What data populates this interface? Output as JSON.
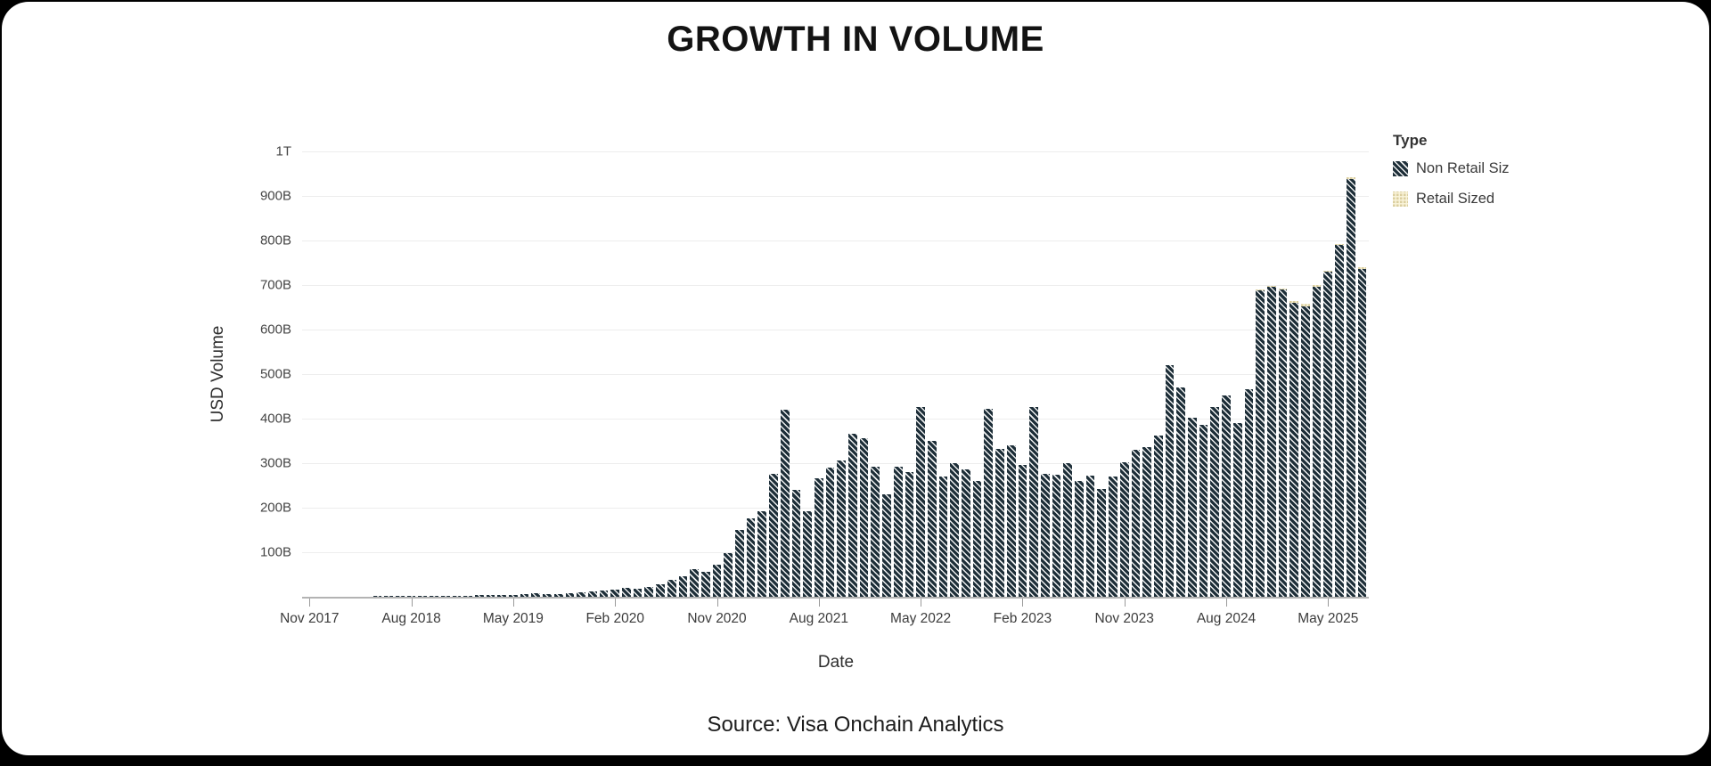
{
  "page": {
    "title": "GROWTH IN VOLUME",
    "source": "Source: Visa Onchain Analytics"
  },
  "legend": {
    "title": "Type",
    "items": [
      {
        "label": "Non Retail Siz",
        "color": "#1d2e38",
        "pattern": "diagonal-hatch"
      },
      {
        "label": "Retail Sized",
        "color": "#dbcfa0",
        "pattern": "grid"
      }
    ]
  },
  "chart_data": {
    "type": "bar",
    "stacked": true,
    "title": "GROWTH IN VOLUME",
    "xlabel": "Date",
    "ylabel": "USD Volume",
    "unit": "billions USD",
    "ylim": [
      0,
      1000
    ],
    "grid": true,
    "legend_position": "right",
    "ytick_labels": [
      "1T",
      "900B",
      "800B",
      "700B",
      "600B",
      "500B",
      "400B",
      "300B",
      "200B",
      "100B"
    ],
    "ytick_values": [
      1000,
      900,
      800,
      700,
      600,
      500,
      400,
      300,
      200,
      100
    ],
    "xtick_labels": [
      "Nov 2017",
      "Aug 2018",
      "May 2019",
      "Feb 2020",
      "Nov 2020",
      "Aug 2021",
      "May 2022",
      "Feb 2023",
      "Nov 2023",
      "Aug 2024",
      "May 2025"
    ],
    "xtick_indices": [
      0,
      9,
      18,
      27,
      36,
      45,
      54,
      63,
      72,
      81,
      90
    ],
    "categories": [
      "Nov 2017",
      "Dec 2017",
      "Jan 2018",
      "Feb 2018",
      "Mar 2018",
      "Apr 2018",
      "May 2018",
      "Jun 2018",
      "Jul 2018",
      "Aug 2018",
      "Sep 2018",
      "Oct 2018",
      "Nov 2018",
      "Dec 2018",
      "Jan 2019",
      "Feb 2019",
      "Mar 2019",
      "Apr 2019",
      "May 2019",
      "Jun 2019",
      "Jul 2019",
      "Aug 2019",
      "Sep 2019",
      "Oct 2019",
      "Nov 2019",
      "Dec 2019",
      "Jan 2020",
      "Feb 2020",
      "Mar 2020",
      "Apr 2020",
      "May 2020",
      "Jun 2020",
      "Jul 2020",
      "Aug 2020",
      "Sep 2020",
      "Oct 2020",
      "Nov 2020",
      "Dec 2020",
      "Jan 2021",
      "Feb 2021",
      "Mar 2021",
      "Apr 2021",
      "May 2021",
      "Jun 2021",
      "Jul 2021",
      "Aug 2021",
      "Sep 2021",
      "Oct 2021",
      "Nov 2021",
      "Dec 2021",
      "Jan 2022",
      "Feb 2022",
      "Mar 2022",
      "Apr 2022",
      "May 2022",
      "Jun 2022",
      "Jul 2022",
      "Aug 2022",
      "Sep 2022",
      "Oct 2022",
      "Nov 2022",
      "Dec 2022",
      "Jan 2023",
      "Feb 2023",
      "Mar 2023",
      "Apr 2023",
      "May 2023",
      "Jun 2023",
      "Jul 2023",
      "Aug 2023",
      "Sep 2023",
      "Oct 2023",
      "Nov 2023",
      "Dec 2023",
      "Jan 2024",
      "Feb 2024",
      "Mar 2024",
      "Apr 2024",
      "May 2024",
      "Jun 2024",
      "Jul 2024",
      "Aug 2024",
      "Sep 2024",
      "Oct 2024",
      "Nov 2024",
      "Dec 2024",
      "Jan 2025",
      "Feb 2025",
      "Mar 2025",
      "Apr 2025",
      "May 2025",
      "Jun 2025",
      "Jul 2025",
      "Aug 2025"
    ],
    "series": [
      {
        "name": "Non Retail Siz",
        "values": [
          1,
          1,
          1,
          1,
          1,
          1,
          2,
          2,
          2,
          2,
          2,
          2,
          3,
          3,
          3,
          4,
          4,
          5,
          5,
          7,
          8,
          7,
          7,
          8,
          10,
          12,
          15,
          17,
          20,
          18,
          23,
          29,
          38,
          47,
          62,
          57,
          73,
          98,
          150,
          177,
          193,
          277,
          420,
          240,
          193,
          267,
          290,
          307,
          367,
          357,
          293,
          230,
          293,
          280,
          427,
          350,
          270,
          300,
          287,
          260,
          423,
          333,
          340,
          297,
          427,
          277,
          275,
          300,
          260,
          273,
          243,
          270,
          303,
          330,
          337,
          363,
          520,
          470,
          403,
          387,
          427,
          453,
          390,
          467,
          688,
          697,
          690,
          660,
          653,
          697,
          730,
          790,
          938,
          737
        ]
      },
      {
        "name": "Retail Sized",
        "values": [
          0,
          0,
          0,
          0,
          0,
          0,
          0,
          0,
          0,
          0,
          0,
          0,
          0,
          0,
          0,
          0,
          0,
          0,
          0,
          0,
          0,
          0,
          0,
          0,
          0,
          0,
          0,
          0,
          0,
          0,
          0,
          0,
          0,
          0,
          0,
          0,
          0,
          0,
          0,
          0,
          0,
          0,
          0,
          0,
          0,
          0,
          0,
          0,
          0,
          0,
          0,
          0,
          0,
          0,
          0,
          0,
          0,
          0,
          0,
          0,
          0,
          0,
          0,
          0,
          0,
          0,
          0,
          0,
          0,
          0,
          0,
          0,
          0,
          0,
          0,
          0,
          0,
          0,
          0,
          0,
          0,
          0,
          0,
          0,
          2,
          2,
          3,
          5,
          5,
          3,
          3,
          3,
          4,
          3
        ]
      }
    ]
  }
}
